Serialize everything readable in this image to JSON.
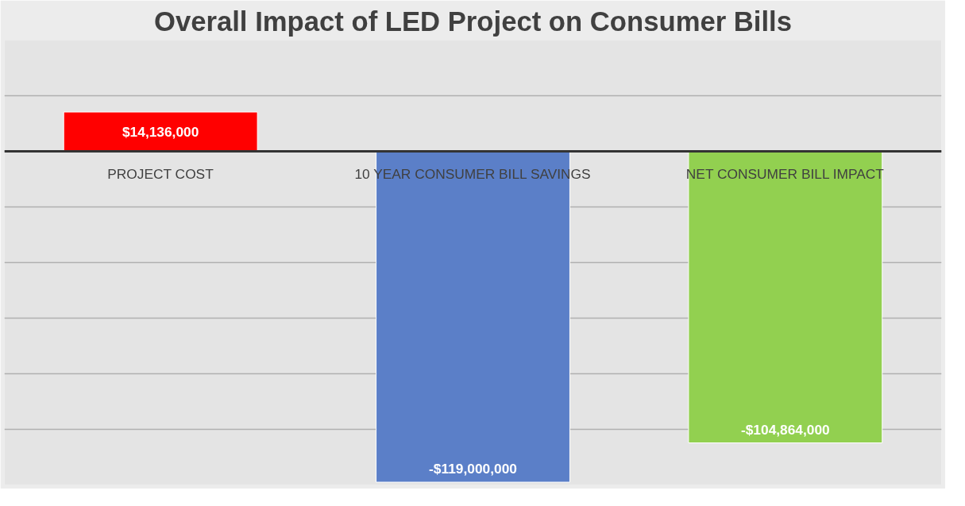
{
  "chart_data": {
    "type": "bar",
    "title": "Overall Impact of LED Project on Consumer Bills",
    "categories": [
      "PROJECT COST",
      "10 YEAR CONSUMER BILL SAVINGS",
      "NET CONSUMER BILL IMPACT"
    ],
    "values": [
      14136000,
      -119000000,
      -104864000
    ],
    "colors": [
      "#ff0000",
      "#5b7fc8",
      "#92d050"
    ],
    "value_labels": [
      "$14,136,000",
      "-$119,000,000",
      "-$104,864,000"
    ],
    "ylim": [
      -120000000,
      40000000
    ],
    "yticks": [
      {
        "value": -120000000,
        "label": null
      },
      {
        "value": -100000000,
        "label": null
      },
      {
        "value": -80000000,
        "label": null
      },
      {
        "value": -60000000,
        "label": null
      },
      {
        "value": -40000000,
        "label": null
      },
      {
        "value": -20000000,
        "label": null
      },
      {
        "value": 0,
        "label": null
      },
      {
        "value": 20000000,
        "label": null
      },
      {
        "value": 40000000,
        "label": null
      }
    ],
    "grid": "y",
    "tick_labels": "x"
  }
}
